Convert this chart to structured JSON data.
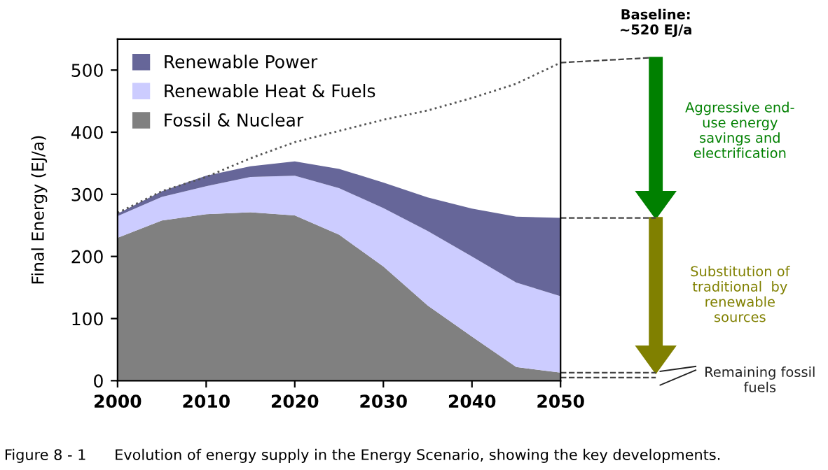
{
  "chart_data": {
    "type": "area",
    "stacked": true,
    "ylabel": "Final Energy (EJ/a)",
    "x": [
      2000,
      2005,
      2010,
      2015,
      2020,
      2025,
      2030,
      2035,
      2040,
      2045,
      2050
    ],
    "series": [
      {
        "name": "Fossil & Nuclear",
        "color": "#808080",
        "values": [
          230,
          258,
          268,
          271,
          266,
          235,
          184,
          121,
          71,
          22,
          13
        ]
      },
      {
        "name": "Renewable Heat & Fuels",
        "color": "#ccccff",
        "values": [
          35,
          38,
          45,
          57,
          64,
          75,
          94,
          120,
          129,
          136,
          123
        ]
      },
      {
        "name": "Renewable Power",
        "color": "#666699",
        "values": [
          4,
          9,
          17,
          17,
          23,
          31,
          41,
          54,
          77,
          106,
          126
        ]
      },
      {
        "type": "line",
        "color": "#555555",
        "line_style": "dotted",
        "values": [
          270,
          305,
          328,
          358,
          384,
          402,
          420,
          435,
          455,
          478,
          512
        ]
      }
    ],
    "xlim": [
      2000,
      2050
    ],
    "ylim": [
      0,
      550
    ],
    "xticks": [
      2000,
      2010,
      2020,
      2030,
      2040,
      2050
    ],
    "yticks": [
      0,
      100,
      200,
      300,
      400,
      500
    ],
    "grid": false,
    "legend": "top left",
    "annotations": [
      "Baseline:\n~520 EJ/a",
      "Aggressive end-\nuse energy\nsavings and\nelectrification",
      "Substitution of\ntraditional  by\nrenewable\nsources",
      "Remaining fossil\nfuels",
      "Figure 8 - 1      Evolution of energy supply in the Energy Scenario, showing the key developments."
    ]
  }
}
